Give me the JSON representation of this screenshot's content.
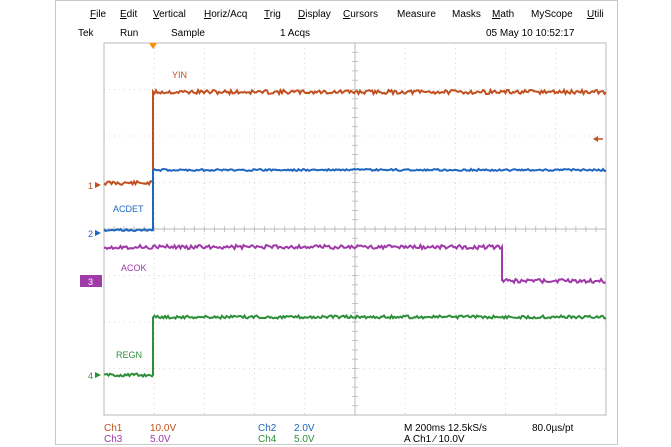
{
  "menu": [
    {
      "label": "File",
      "key": "F",
      "rest": "ile"
    },
    {
      "label": "Edit",
      "key": "E",
      "rest": "dit"
    },
    {
      "label": "Vertical",
      "key": "V",
      "rest": "ertical"
    },
    {
      "label": "Horiz/Acq",
      "key": "H",
      "rest": "oriz/Acq"
    },
    {
      "label": "Trig",
      "key": "T",
      "rest": "rig"
    },
    {
      "label": "Display",
      "key": "D",
      "rest": "isplay"
    },
    {
      "label": "Cursors",
      "key": "C",
      "rest": "ursors"
    },
    {
      "label": "Measure",
      "key": "",
      "rest": "Measure"
    },
    {
      "label": "Masks",
      "key": "",
      "rest": "Masks"
    },
    {
      "label": "Math",
      "key": "M",
      "rest": "ath"
    },
    {
      "label": "MyScope",
      "key": "",
      "rest": "MyScope"
    },
    {
      "label": "Utili",
      "key": "U",
      "rest": "tili"
    }
  ],
  "status": {
    "brand": "Tek",
    "run_state": "Run",
    "mode": "Sample",
    "acqs": "1 Acqs",
    "datetime": "05 May 10 10:52:17"
  },
  "channels": {
    "ch1": {
      "name": "YIN",
      "marker": "1",
      "color": "#c0501f"
    },
    "ch2": {
      "name": "ACDET",
      "marker": "2",
      "color": "#1f66c0"
    },
    "ch3": {
      "name": "ACOK",
      "marker": "3",
      "color": "#a03aa8"
    },
    "ch4": {
      "name": "REGN",
      "marker": "4",
      "color": "#2e8f3a"
    }
  },
  "readouts": {
    "ch1_label": "Ch1",
    "ch1_scale": "10.0V",
    "ch2_label": "Ch2",
    "ch2_scale": "2.0V",
    "ch3_label": "Ch3",
    "ch3_scale": "5.0V",
    "ch4_label": "Ch4",
    "ch4_scale": "5.0V",
    "timebase": "M 200ms 12.5kS/s",
    "resolution": "80.0µs/pt",
    "trigger": "A  Ch1  ∕  10.0V"
  },
  "colors": {
    "grid": "#b8b8b8",
    "trigger_marker": "#ff8c00",
    "ch1_label": "#c0501f",
    "ch3_label": "#a03aa8"
  }
}
